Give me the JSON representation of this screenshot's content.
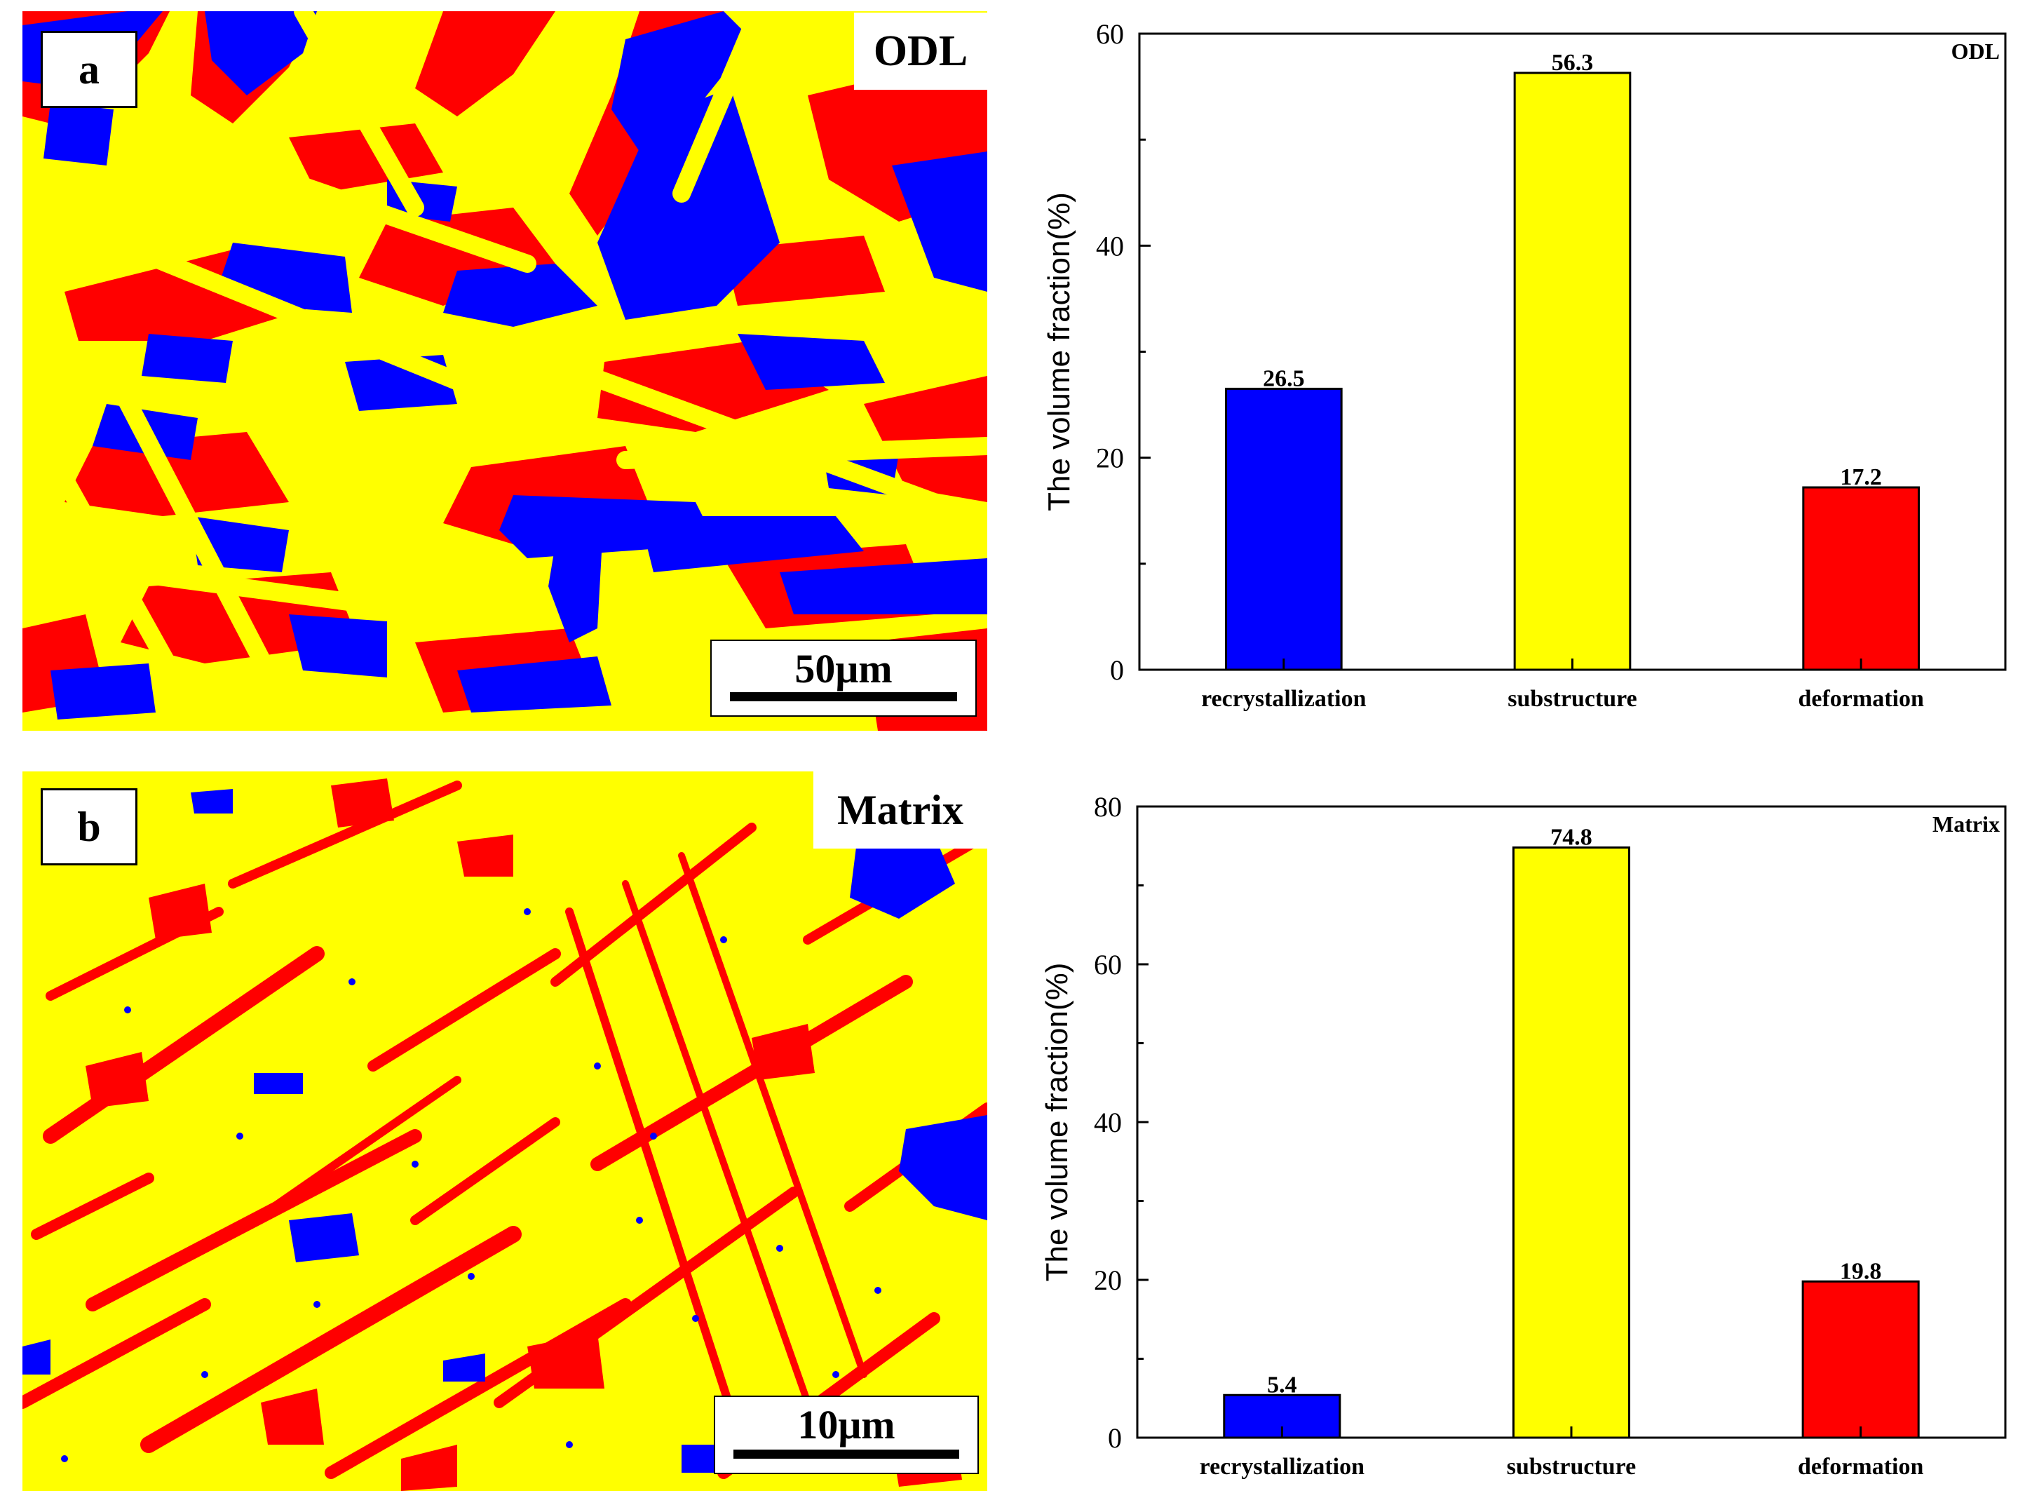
{
  "panels": {
    "a": {
      "letter": "a",
      "region": "ODL",
      "scalebar": "50μm"
    },
    "b": {
      "letter": "b",
      "region": "Matrix",
      "scalebar": "10μm"
    }
  },
  "colors": {
    "recrystallization": "#0000ff",
    "substructure": "#ffff00",
    "deformation": "#ff0000"
  },
  "chart_data": [
    {
      "type": "bar",
      "title": "",
      "annotation": "ODL",
      "categories": [
        "recrystallization",
        "substructure",
        "deformation"
      ],
      "values": [
        26.5,
        56.3,
        17.2
      ],
      "value_labels": [
        "26.5",
        "56.3",
        "17.2"
      ],
      "colors": [
        "#0000ff",
        "#ffff00",
        "#ff0000"
      ],
      "xlabel": "",
      "ylabel": "The volume fraction(%)",
      "ylim": [
        0,
        60
      ],
      "yticks": [
        0,
        20,
        40,
        60
      ]
    },
    {
      "type": "bar",
      "title": "",
      "annotation": "Matrix",
      "categories": [
        "recrystallization",
        "substructure",
        "deformation"
      ],
      "values": [
        5.4,
        74.8,
        19.8
      ],
      "value_labels": [
        "5.4",
        "74.8",
        "19.8"
      ],
      "colors": [
        "#0000ff",
        "#ffff00",
        "#ff0000"
      ],
      "xlabel": "",
      "ylabel": "The volume fraction(%)",
      "ylim": [
        0,
        80
      ],
      "yticks": [
        0,
        20,
        40,
        60,
        80
      ]
    }
  ]
}
